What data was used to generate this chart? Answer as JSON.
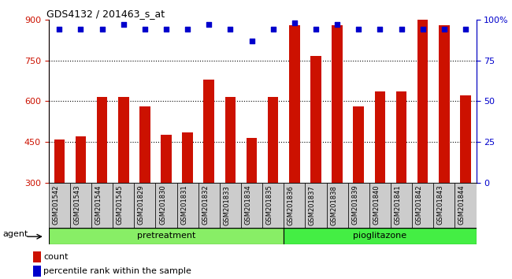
{
  "title": "GDS4132 / 201463_s_at",
  "samples": [
    "GSM201542",
    "GSM201543",
    "GSM201544",
    "GSM201545",
    "GSM201829",
    "GSM201830",
    "GSM201831",
    "GSM201832",
    "GSM201833",
    "GSM201834",
    "GSM201835",
    "GSM201836",
    "GSM201837",
    "GSM201838",
    "GSM201839",
    "GSM201840",
    "GSM201841",
    "GSM201842",
    "GSM201843",
    "GSM201844"
  ],
  "counts": [
    460,
    470,
    615,
    615,
    580,
    475,
    485,
    680,
    615,
    465,
    615,
    880,
    765,
    880,
    580,
    635,
    635,
    900,
    880,
    620
  ],
  "percentile": [
    94,
    94,
    94,
    97,
    94,
    94,
    94,
    97,
    94,
    87,
    94,
    98,
    94,
    97,
    94,
    94,
    94,
    94,
    94,
    94
  ],
  "bar_color": "#cc1100",
  "dot_color": "#0000cc",
  "ylim_left": [
    300,
    900
  ],
  "ylim_right": [
    0,
    100
  ],
  "yticks_left": [
    300,
    450,
    600,
    750,
    900
  ],
  "yticks_right": [
    0,
    25,
    50,
    75,
    100
  ],
  "grid_color": "#000000",
  "pretreatment_samples": 11,
  "pretreatment_label": "pretreatment",
  "pioglitazone_label": "pioglitazone",
  "agent_label": "agent",
  "legend_count_label": "count",
  "legend_pct_label": "percentile rank within the sample",
  "xlabel_bg_color": "#cccccc",
  "group_color_pre": "#88ee66",
  "group_color_pio": "#44ee44",
  "group_border_color": "#000000"
}
